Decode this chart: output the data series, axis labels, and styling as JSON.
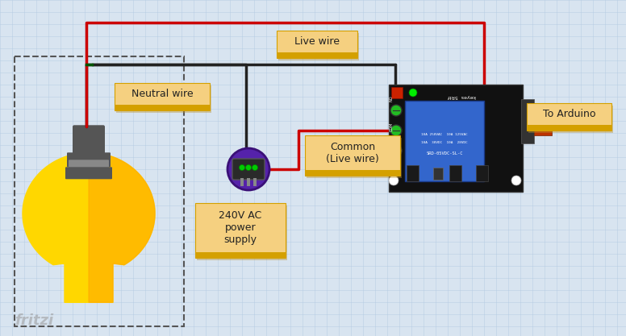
{
  "bg_color": "#d8e4f0",
  "grid_color": "#b0c8e0",
  "wire_red": "#cc0000",
  "wire_black": "#222222",
  "wire_green": "#005500",
  "label_bg": "#f5d080",
  "label_border": "#d4a000",
  "labels": {
    "neutral": "Neutral wire",
    "live": "Live wire",
    "common": "Common\n(Live wire)",
    "supply": "240V AC\npower\nsupply",
    "arduino": "To Arduino"
  },
  "bulb_yellow": "#FFD700",
  "bulb_orange": "#FFA500",
  "bulb_gray_dark": "#555555",
  "bulb_gray_light": "#888888",
  "relay_blue": "#3366cc",
  "relay_black": "#111111",
  "dashed_border": "#555555"
}
